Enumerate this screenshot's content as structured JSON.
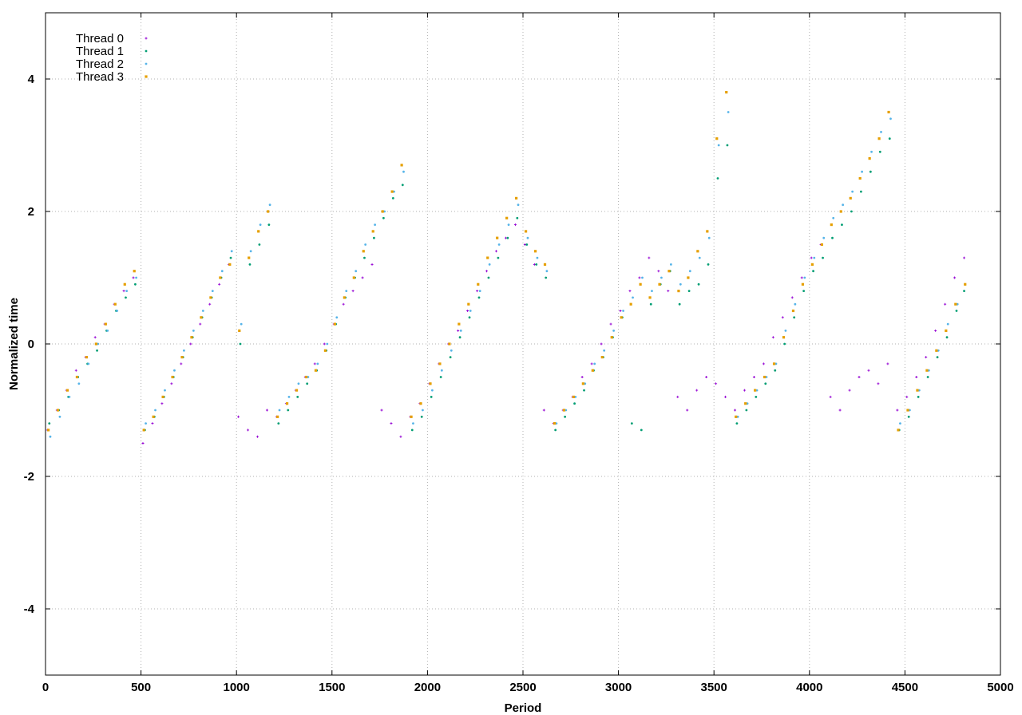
{
  "chart_data": {
    "type": "scatter",
    "title": "",
    "xlabel": "Period",
    "ylabel": "Normalized time",
    "xlim": [
      0,
      5000
    ],
    "ylim": [
      -5,
      5
    ],
    "x_ticks": [
      0,
      500,
      1000,
      1500,
      2000,
      2500,
      3000,
      3500,
      4000,
      4500,
      5000
    ],
    "y_ticks": [
      -4,
      -2,
      0,
      2,
      4
    ],
    "grid": true,
    "legend_position": "top-left",
    "series": [
      {
        "name": "Thread 0",
        "color": "#9400d3",
        "marker": "plus",
        "x": [
          10,
          60,
          110,
          160,
          210,
          260,
          310,
          360,
          410,
          460,
          510,
          560,
          610,
          660,
          710,
          760,
          810,
          860,
          910,
          960,
          1010,
          1060,
          1110,
          1160,
          1210,
          1260,
          1310,
          1360,
          1410,
          1460,
          1510,
          1560,
          1610,
          1660,
          1710,
          1760,
          1810,
          1860,
          1910,
          1960,
          2010,
          2060,
          2110,
          2160,
          2210,
          2260,
          2310,
          2360,
          2410,
          2460,
          2510,
          2560,
          2610,
          2660,
          2710,
          2760,
          2810,
          2860,
          2910,
          2960,
          3010,
          3060,
          3110,
          3160,
          3210,
          3260,
          3310,
          3360,
          3410,
          3460,
          3510,
          3560,
          3610,
          3660,
          3710,
          3760,
          3810,
          3860,
          3910,
          3960,
          4010,
          4060,
          4110,
          4160,
          4210,
          4260,
          4310,
          4360,
          4410,
          4460,
          4510,
          4560,
          4610,
          4660,
          4710,
          4760,
          4810
        ],
        "y": [
          -1.3,
          -1.0,
          -0.7,
          -0.4,
          -0.2,
          0.1,
          0.3,
          0.6,
          0.8,
          1.0,
          -1.5,
          -1.2,
          -0.9,
          -0.6,
          -0.3,
          0.0,
          0.3,
          0.6,
          0.9,
          1.2,
          -1.1,
          -1.3,
          -1.4,
          -1.0,
          -1.1,
          -0.9,
          -0.7,
          -0.5,
          -0.3,
          0.0,
          0.3,
          0.6,
          0.8,
          1.0,
          1.2,
          -1.0,
          -1.2,
          -1.4,
          -1.1,
          -0.9,
          -0.6,
          -0.3,
          0.0,
          0.2,
          0.5,
          0.8,
          1.1,
          1.4,
          1.6,
          1.8,
          1.5,
          1.2,
          -1.0,
          -1.2,
          -1.0,
          -0.8,
          -0.5,
          -0.3,
          0.0,
          0.3,
          0.5,
          0.8,
          1.0,
          1.3,
          1.1,
          0.8,
          -0.8,
          -1.0,
          -0.7,
          -0.5,
          -0.6,
          -0.8,
          -1.0,
          -0.7,
          -0.5,
          -0.3,
          0.1,
          0.4,
          0.7,
          1.0,
          1.3,
          1.5,
          -0.8,
          -1.0,
          -0.7,
          -0.5,
          -0.4,
          -0.6,
          -0.3,
          -1.0,
          -0.8,
          -0.5,
          -0.2,
          0.2,
          0.6,
          1.0,
          1.3
        ]
      },
      {
        "name": "Thread 1",
        "color": "#009e73",
        "marker": "dot",
        "x": [
          20,
          70,
          120,
          170,
          220,
          270,
          320,
          370,
          420,
          470,
          520,
          570,
          620,
          670,
          720,
          770,
          820,
          870,
          920,
          970,
          1020,
          1070,
          1120,
          1170,
          1220,
          1270,
          1320,
          1370,
          1420,
          1470,
          1520,
          1570,
          1620,
          1670,
          1720,
          1770,
          1820,
          1870,
          1920,
          1970,
          2020,
          2070,
          2120,
          2170,
          2220,
          2270,
          2320,
          2370,
          2420,
          2470,
          2520,
          2570,
          2620,
          2670,
          2720,
          2770,
          2820,
          2870,
          2920,
          2970,
          3020,
          3070,
          3120,
          3170,
          3220,
          3270,
          3320,
          3370,
          3420,
          3470,
          3520,
          3570,
          3620,
          3670,
          3720,
          3770,
          3820,
          3870,
          3920,
          3970,
          4020,
          4070,
          4120,
          4170,
          4220,
          4270,
          4320,
          4370,
          4420,
          4470,
          4520,
          4570,
          4620,
          4670,
          4720,
          4770,
          4810
        ],
        "y": [
          -1.2,
          -1.0,
          -0.8,
          -0.5,
          -0.3,
          -0.1,
          0.2,
          0.5,
          0.7,
          0.9,
          -1.3,
          -1.1,
          -0.8,
          -0.5,
          -0.2,
          0.1,
          0.4,
          0.7,
          1.0,
          1.3,
          0.0,
          1.2,
          1.5,
          1.8,
          -1.2,
          -1.0,
          -0.8,
          -0.6,
          -0.4,
          -0.1,
          0.3,
          0.7,
          1.0,
          1.3,
          1.6,
          1.9,
          2.2,
          2.4,
          -1.3,
          -1.1,
          -0.8,
          -0.5,
          -0.2,
          0.1,
          0.4,
          0.7,
          1.0,
          1.3,
          1.6,
          1.9,
          1.5,
          1.2,
          1.0,
          -1.3,
          -1.1,
          -0.9,
          -0.7,
          -0.4,
          -0.2,
          0.1,
          0.4,
          -1.2,
          -1.3,
          0.6,
          0.9,
          1.1,
          0.6,
          0.8,
          0.9,
          1.2,
          2.5,
          3.0,
          -1.2,
          -1.0,
          -0.8,
          -0.6,
          -0.4,
          0.0,
          0.4,
          0.8,
          1.1,
          1.3,
          1.6,
          1.8,
          2.0,
          2.3,
          2.6,
          2.9,
          3.1,
          -1.3,
          -1.1,
          -0.8,
          -0.5,
          -0.2,
          0.1,
          0.5,
          0.8
        ]
      },
      {
        "name": "Thread 2",
        "color": "#56b4e9",
        "marker": "dot",
        "x": [
          25,
          75,
          125,
          175,
          225,
          275,
          325,
          375,
          425,
          475,
          525,
          575,
          625,
          675,
          725,
          775,
          825,
          875,
          925,
          975,
          1025,
          1075,
          1125,
          1175,
          1225,
          1275,
          1325,
          1375,
          1425,
          1475,
          1525,
          1575,
          1625,
          1675,
          1725,
          1775,
          1825,
          1875,
          1925,
          1975,
          2025,
          2075,
          2125,
          2175,
          2225,
          2275,
          2325,
          2375,
          2425,
          2475,
          2525,
          2575,
          2625,
          2675,
          2725,
          2775,
          2825,
          2875,
          2925,
          2975,
          3025,
          3075,
          3125,
          3175,
          3225,
          3275,
          3325,
          3375,
          3425,
          3475,
          3525,
          3575,
          3625,
          3675,
          3725,
          3775,
          3825,
          3875,
          3925,
          3975,
          4025,
          4075,
          4125,
          4175,
          4225,
          4275,
          4325,
          4375,
          4425,
          4475,
          4525,
          4575,
          4625,
          4675,
          4725,
          4775,
          4815
        ],
        "y": [
          -1.4,
          -1.1,
          -0.8,
          -0.6,
          -0.3,
          0.0,
          0.2,
          0.5,
          0.8,
          1.0,
          -1.2,
          -1.0,
          -0.7,
          -0.4,
          -0.1,
          0.2,
          0.5,
          0.8,
          1.1,
          1.4,
          0.3,
          1.4,
          1.8,
          2.1,
          -1.0,
          -0.8,
          -0.6,
          -0.5,
          -0.3,
          0.0,
          0.4,
          0.8,
          1.1,
          1.5,
          1.8,
          2.0,
          2.3,
          2.6,
          -1.2,
          -1.0,
          -0.7,
          -0.4,
          -0.1,
          0.2,
          0.5,
          0.8,
          1.2,
          1.5,
          1.8,
          2.1,
          1.6,
          1.3,
          1.1,
          -1.2,
          -1.0,
          -0.8,
          -0.6,
          -0.3,
          -0.1,
          0.2,
          0.5,
          0.7,
          1.0,
          0.8,
          1.0,
          1.2,
          0.9,
          1.1,
          1.3,
          1.6,
          3.0,
          3.5,
          -1.1,
          -0.9,
          -0.7,
          -0.5,
          -0.3,
          0.2,
          0.6,
          1.0,
          1.3,
          1.6,
          1.9,
          2.1,
          2.3,
          2.6,
          2.9,
          3.2,
          3.4,
          -1.2,
          -1.0,
          -0.7,
          -0.4,
          -0.1,
          0.3,
          0.6,
          0.9
        ]
      },
      {
        "name": "Thread 3",
        "color": "#e69f00",
        "marker": "square",
        "x": [
          15,
          65,
          115,
          165,
          215,
          265,
          315,
          365,
          415,
          465,
          515,
          565,
          615,
          665,
          715,
          765,
          815,
          865,
          915,
          965,
          1015,
          1065,
          1115,
          1165,
          1215,
          1265,
          1315,
          1365,
          1415,
          1465,
          1515,
          1565,
          1615,
          1665,
          1715,
          1765,
          1815,
          1865,
          1915,
          1965,
          2015,
          2065,
          2115,
          2165,
          2215,
          2265,
          2315,
          2365,
          2415,
          2465,
          2515,
          2565,
          2615,
          2665,
          2715,
          2765,
          2815,
          2865,
          2915,
          2965,
          3015,
          3065,
          3115,
          3165,
          3215,
          3265,
          3315,
          3365,
          3415,
          3465,
          3515,
          3565,
          3615,
          3665,
          3715,
          3765,
          3815,
          3865,
          3915,
          3965,
          4015,
          4065,
          4115,
          4165,
          4215,
          4265,
          4315,
          4365,
          4415,
          4465,
          4515,
          4565,
          4615,
          4665,
          4715,
          4765,
          4815
        ],
        "y": [
          -1.3,
          -1.0,
          -0.7,
          -0.5,
          -0.2,
          0.0,
          0.3,
          0.6,
          0.9,
          1.1,
          -1.3,
          -1.1,
          -0.8,
          -0.5,
          -0.2,
          0.1,
          0.4,
          0.7,
          1.0,
          1.2,
          0.2,
          1.3,
          1.7,
          2.0,
          -1.1,
          -0.9,
          -0.7,
          -0.5,
          -0.4,
          -0.1,
          0.3,
          0.7,
          1.0,
          1.4,
          1.7,
          2.0,
          2.3,
          2.7,
          -1.1,
          -0.9,
          -0.6,
          -0.3,
          0.0,
          0.3,
          0.6,
          0.9,
          1.3,
          1.6,
          1.9,
          2.2,
          1.7,
          1.4,
          1.2,
          -1.2,
          -1.0,
          -0.8,
          -0.6,
          -0.4,
          -0.2,
          0.1,
          0.4,
          0.6,
          0.9,
          0.7,
          0.9,
          1.1,
          0.8,
          1.0,
          1.4,
          1.7,
          3.1,
          3.8,
          -1.1,
          -0.9,
          -0.7,
          -0.5,
          -0.3,
          0.1,
          0.5,
          0.9,
          1.2,
          1.5,
          1.8,
          2.0,
          2.2,
          2.5,
          2.8,
          3.1,
          3.5,
          -1.3,
          -1.0,
          -0.7,
          -0.4,
          -0.1,
          0.2,
          0.6,
          0.9
        ]
      }
    ]
  }
}
